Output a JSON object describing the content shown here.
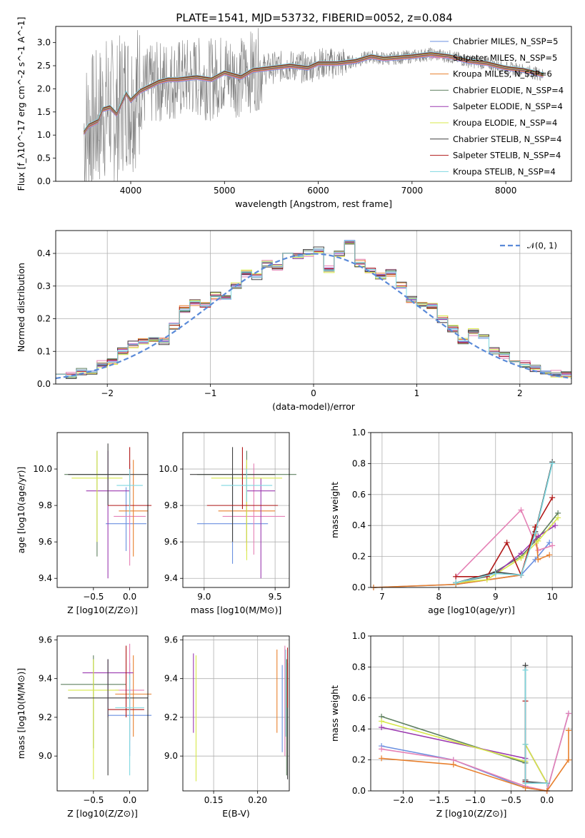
{
  "figure_title": "PLATE=1541, MJD=53732, FIBERID=0052, z=0.084",
  "colors": {
    "chabrier_miles": "#6a8fe0",
    "salpeter_miles": "#e580b5",
    "kroupa_miles": "#e8802e",
    "chabrier_elodie": "#5f8060",
    "salpeter_elodie": "#9b3ab0",
    "kroupa_elodie": "#d7e84a",
    "chabrier_stelib": "#404040",
    "salpeter_stelib": "#b01818",
    "kroupa_stelib": "#7fd8e0",
    "data": "#808080",
    "normal": "#5a8ad8"
  },
  "chart_data": [
    {
      "type": "line",
      "title": "PLATE=1541, MJD=53732, FIBERID=0052, z=0.084",
      "xlabel": "wavelength [Angstrom, rest frame]",
      "ylabel": "Flux [f_λ10^-17 erg cm^-2 s^-1 A^-1]",
      "xlim": [
        3200,
        8700
      ],
      "ylim": [
        0,
        3.35
      ],
      "xticks": [
        "4000",
        "5000",
        "6000",
        "7000",
        "8000"
      ],
      "yticks": [
        "0.0",
        "0.5",
        "1.0",
        "1.5",
        "2.0",
        "2.5",
        "3.0"
      ],
      "legend_position": "right",
      "legend": [
        "Chabrier MILES, N_SSP=5",
        "Salpeter MILES, N_SSP=5",
        "Kroupa MILES, N_SSP=6",
        "Chabrier ELODIE, N_SSP=4",
        "Salpeter ELODIE, N_SSP=4",
        "Kroupa ELODIE, N_SSP=4",
        "Chabrier STELIB, N_SSP=4",
        "Salpeter STELIB, N_SSP=4",
        "Kroupa STELIB, N_SSP=4"
      ],
      "model_x": [
        3500,
        3550,
        3650,
        3700,
        3780,
        3850,
        3950,
        4000,
        4100,
        4200,
        4300,
        4400,
        4500,
        4700,
        4860,
        5000,
        5175,
        5300,
        5500,
        5700,
        5890,
        6000,
        6200,
        6400,
        6563,
        6700,
        7000,
        7200,
        7400,
        7600,
        7800,
        8000,
        8200,
        8400
      ],
      "model_y": [
        1.05,
        1.2,
        1.3,
        1.55,
        1.6,
        1.45,
        1.9,
        1.75,
        1.95,
        2.05,
        2.15,
        2.2,
        2.2,
        2.25,
        2.2,
        2.35,
        2.25,
        2.4,
        2.45,
        2.5,
        2.45,
        2.55,
        2.55,
        2.6,
        2.7,
        2.65,
        2.7,
        2.75,
        2.7,
        2.6,
        2.55,
        2.45,
        2.4,
        2.3
      ]
    },
    {
      "type": "bar",
      "xlabel": "(data-model)/error",
      "ylabel": "Normed distribution",
      "xlim": [
        -2.5,
        2.5
      ],
      "ylim": [
        0,
        0.47
      ],
      "xticks": [
        "−2",
        "−1",
        "0",
        "1",
        "2"
      ],
      "yticks": [
        "0.0",
        "0.1",
        "0.2",
        "0.3",
        "0.4"
      ],
      "legend": [
        "𝒩(0, 1)"
      ],
      "legend_position": "top-right",
      "bin_width": 0.1,
      "x": [
        -2.45,
        -2.35,
        -2.25,
        -2.15,
        -2.05,
        -1.95,
        -1.85,
        -1.75,
        -1.65,
        -1.55,
        -1.45,
        -1.35,
        -1.25,
        -1.15,
        -1.05,
        -0.95,
        -0.85,
        -0.75,
        -0.65,
        -0.55,
        -0.45,
        -0.35,
        -0.25,
        -0.15,
        -0.05,
        0.05,
        0.15,
        0.25,
        0.35,
        0.45,
        0.55,
        0.65,
        0.75,
        0.85,
        0.95,
        1.05,
        1.15,
        1.25,
        1.35,
        1.45,
        1.55,
        1.65,
        1.75,
        1.85,
        1.95,
        2.05,
        2.15,
        2.25,
        2.35,
        2.45
      ],
      "y": [
        0.03,
        0.025,
        0.04,
        0.04,
        0.06,
        0.07,
        0.1,
        0.12,
        0.13,
        0.14,
        0.13,
        0.18,
        0.23,
        0.25,
        0.24,
        0.27,
        0.26,
        0.3,
        0.34,
        0.33,
        0.37,
        0.36,
        0.4,
        0.39,
        0.4,
        0.41,
        0.35,
        0.4,
        0.44,
        0.37,
        0.35,
        0.33,
        0.34,
        0.3,
        0.26,
        0.24,
        0.24,
        0.2,
        0.17,
        0.13,
        0.16,
        0.14,
        0.1,
        0.09,
        0.07,
        0.06,
        0.05,
        0.04,
        0.03,
        0.03
      ]
    },
    {
      "type": "scatter",
      "xlabel": "Z [log10(Z/Z⊙)]",
      "ylabel": "age  [log10(age/yr)]",
      "xlim": [
        -1.0,
        0.25
      ],
      "ylim": [
        9.35,
        10.2
      ],
      "xticks": [
        "−0.5",
        "0.0"
      ],
      "yticks": [
        "9.4",
        "9.6",
        "9.8",
        "10.0"
      ],
      "points": [
        {
          "x": -0.05,
          "y": 9.7,
          "xerr": 0.28,
          "ymin": 9.55,
          "ymax": 9.9
        },
        {
          "x": 0.0,
          "y": 9.74,
          "xerr": 0.22,
          "ymin": 9.47,
          "ymax": 10.03
        },
        {
          "x": 0.05,
          "y": 9.77,
          "xerr": 0.2,
          "ymin": 9.52,
          "ymax": 10.05
        },
        {
          "x": -0.45,
          "y": 9.97,
          "xerr": 0.45,
          "ymin": 9.52,
          "ymax": 10.1
        },
        {
          "x": -0.3,
          "y": 9.88,
          "xerr": 0.3,
          "ymin": 9.4,
          "ymax": 10.1
        },
        {
          "x": -0.45,
          "y": 9.95,
          "xerr": 0.35,
          "ymin": 9.6,
          "ymax": 10.1
        },
        {
          "x": -0.3,
          "y": 9.97,
          "xerr": 0.55,
          "ymin": 9.8,
          "ymax": 10.14
        },
        {
          "x": 0.0,
          "y": 9.8,
          "xerr": 0.3,
          "ymin": 9.8,
          "ymax": 10.12
        },
        {
          "x": 0.0,
          "y": 9.91,
          "xerr": 0.18,
          "ymin": 9.75,
          "ymax": 10.0
        }
      ]
    },
    {
      "type": "scatter",
      "xlabel": "mass [log10(M/M⊙)]",
      "ylabel": "",
      "xlim": [
        8.85,
        9.6
      ],
      "ylim": [
        9.35,
        10.2
      ],
      "xticks": [
        "9.0",
        "9.5"
      ],
      "yticks": [
        "9.4",
        "9.6",
        "9.8",
        "10.0"
      ],
      "points": [
        {
          "x": 9.2,
          "y": 9.7,
          "xerr": 0.25,
          "ymin": 9.48,
          "ymax": 9.96
        },
        {
          "x": 9.35,
          "y": 9.74,
          "xerr": 0.22,
          "ymin": 9.53,
          "ymax": 10.03
        },
        {
          "x": 9.3,
          "y": 9.77,
          "xerr": 0.2,
          "ymin": 9.55,
          "ymax": 10.02
        },
        {
          "x": 9.3,
          "y": 9.97,
          "xerr": 0.35,
          "ymin": 9.6,
          "ymax": 10.1
        },
        {
          "x": 9.4,
          "y": 9.88,
          "xerr": 0.1,
          "ymin": 9.4,
          "ymax": 9.95
        },
        {
          "x": 9.3,
          "y": 9.95,
          "xerr": 0.25,
          "ymin": 9.5,
          "ymax": 10.05
        },
        {
          "x": 9.2,
          "y": 9.97,
          "xerr": 0.3,
          "ymin": 9.6,
          "ymax": 10.12
        },
        {
          "x": 9.27,
          "y": 9.8,
          "xerr": 0.25,
          "ymin": 9.78,
          "ymax": 10.12
        },
        {
          "x": 9.3,
          "y": 9.91,
          "xerr": 0.18,
          "ymin": 9.82,
          "ymax": 10.0
        }
      ]
    },
    {
      "type": "line",
      "xlabel": "age  [log10(age/yr)]",
      "ylabel": "mass weight",
      "xlim": [
        6.8,
        10.35
      ],
      "ylim": [
        0,
        1.0
      ],
      "xticks": [
        "7",
        "8",
        "9",
        "10"
      ],
      "yticks": [
        "0.0",
        "0.2",
        "0.4",
        "0.6",
        "0.8",
        "1.0"
      ],
      "series": [
        {
          "x": [
            6.85,
            8.3,
            9.45,
            9.7,
            9.95
          ],
          "y": [
            0.0,
            0.02,
            0.08,
            0.18,
            0.29
          ]
        },
        {
          "x": [
            8.3,
            9.45,
            9.75,
            10.0
          ],
          "y": [
            0.07,
            0.5,
            0.24,
            0.27
          ]
        },
        {
          "x": [
            6.85,
            8.3,
            9.45,
            9.7,
            9.75,
            9.95
          ],
          "y": [
            0.0,
            0.02,
            0.08,
            0.39,
            0.18,
            0.21
          ]
        },
        {
          "x": [
            8.3,
            8.85,
            9.45,
            9.75,
            10.1
          ],
          "y": [
            0.03,
            0.07,
            0.2,
            0.32,
            0.48
          ]
        },
        {
          "x": [
            8.3,
            9.0,
            9.45,
            9.75,
            10.05
          ],
          "y": [
            0.03,
            0.09,
            0.22,
            0.33,
            0.4
          ]
        },
        {
          "x": [
            8.3,
            8.85,
            9.45,
            9.75,
            10.1
          ],
          "y": [
            0.03,
            0.05,
            0.19,
            0.3,
            0.45
          ]
        },
        {
          "x": [
            8.3,
            9.0,
            9.45,
            9.7,
            10.0
          ],
          "y": [
            0.03,
            0.1,
            0.08,
            0.36,
            0.81
          ]
        },
        {
          "x": [
            8.3,
            8.85,
            9.2,
            9.45,
            9.7,
            10.0
          ],
          "y": [
            0.07,
            0.07,
            0.29,
            0.08,
            0.39,
            0.58
          ]
        },
        {
          "x": [
            8.3,
            9.0,
            9.45,
            9.7,
            10.0
          ],
          "y": [
            0.03,
            0.09,
            0.08,
            0.35,
            0.8
          ]
        }
      ]
    },
    {
      "type": "scatter",
      "xlabel": "Z [log10(Z/Z⊙)]",
      "ylabel": "mass [log10(M/M⊙)]",
      "xlim": [
        -1.0,
        0.25
      ],
      "ylim": [
        8.82,
        9.62
      ],
      "xticks": [
        "−0.5",
        "0.0"
      ],
      "yticks": [
        "9.0",
        "9.2",
        "9.4",
        "9.6"
      ],
      "points": [
        {
          "x": 0.0,
          "y": 9.21,
          "xerr": 0.3,
          "ymin": 9.0,
          "ymax": 9.48
        },
        {
          "x": 0.0,
          "y": 9.34,
          "xerr": 0.2,
          "ymin": 9.08,
          "ymax": 9.58
        },
        {
          "x": 0.05,
          "y": 9.32,
          "xerr": 0.25,
          "ymin": 9.1,
          "ymax": 9.52
        },
        {
          "x": -0.5,
          "y": 9.37,
          "xerr": 0.45,
          "ymin": 9.04,
          "ymax": 9.52
        },
        {
          "x": -0.3,
          "y": 9.43,
          "xerr": 0.35,
          "ymin": 9.2,
          "ymax": 9.5
        },
        {
          "x": -0.5,
          "y": 9.34,
          "xerr": 0.35,
          "ymin": 8.88,
          "ymax": 9.5
        },
        {
          "x": -0.3,
          "y": 9.3,
          "xerr": 0.55,
          "ymin": 8.9,
          "ymax": 9.5
        },
        {
          "x": -0.05,
          "y": 9.24,
          "xerr": 0.25,
          "ymin": 9.2,
          "ymax": 9.57
        },
        {
          "x": 0.0,
          "y": 9.25,
          "xerr": 0.2,
          "ymin": 8.9,
          "ymax": 9.42
        }
      ]
    },
    {
      "type": "scatter",
      "xlabel": "E(B-V)",
      "ylabel": "",
      "xlim": [
        0.115,
        0.236
      ],
      "ylim": [
        8.82,
        9.62
      ],
      "xticks": [
        "0.15",
        "0.20"
      ],
      "yticks": [
        "9.0",
        "9.2",
        "9.4",
        "9.6"
      ],
      "points": [
        {
          "x": 0.228,
          "y": 9.25,
          "ymin": 9.02,
          "ymax": 9.47
        },
        {
          "x": 0.231,
          "y": 9.3,
          "ymin": 9.0,
          "ymax": 9.57
        },
        {
          "x": 0.222,
          "y": 9.3,
          "ymin": 9.12,
          "ymax": 9.55
        },
        {
          "x": 0.233,
          "y": 9.3,
          "ymin": 8.9,
          "ymax": 9.5
        },
        {
          "x": 0.127,
          "y": 9.3,
          "ymin": 9.12,
          "ymax": 9.53
        },
        {
          "x": 0.13,
          "y": 9.3,
          "ymin": 8.87,
          "ymax": 9.52
        },
        {
          "x": 0.234,
          "y": 9.3,
          "ymin": 8.88,
          "ymax": 9.48
        },
        {
          "x": 0.234,
          "y": 9.3,
          "ymin": 9.25,
          "ymax": 9.56
        },
        {
          "x": 0.232,
          "y": 9.3,
          "ymin": 9.1,
          "ymax": 9.55
        }
      ]
    },
    {
      "type": "line",
      "xlabel": "Z [log10(Z/Z⊙)]",
      "ylabel": "mass weight",
      "xlim": [
        -2.45,
        0.35
      ],
      "ylim": [
        0,
        1.0
      ],
      "xticks": [
        "−2.0",
        "−1.5",
        "−1.0",
        "−0.5",
        "0.0"
      ],
      "yticks": [
        "0.0",
        "0.2",
        "0.4",
        "0.6",
        "0.8",
        "1.0"
      ],
      "series": [
        {
          "x": [
            -2.3,
            -1.3,
            -0.3,
            0.0,
            0.3
          ],
          "y": [
            0.29,
            0.2,
            0.02,
            0.0,
            0.5
          ]
        },
        {
          "x": [
            -2.3,
            -1.3,
            -0.3,
            0.0,
            0.3
          ],
          "y": [
            0.27,
            0.2,
            0.03,
            0.0,
            0.5
          ]
        },
        {
          "x": [
            -2.3,
            -1.3,
            -0.3,
            0.0,
            0.3,
            0.3
          ],
          "y": [
            0.21,
            0.17,
            0.02,
            0.0,
            0.2,
            0.39
          ]
        },
        {
          "x": [
            -2.3,
            -0.3,
            -0.3,
            0.0
          ],
          "y": [
            0.48,
            0.18,
            0.3,
            0.05
          ]
        },
        {
          "x": [
            -2.3,
            -0.3,
            -0.3,
            0.0
          ],
          "y": [
            0.41,
            0.21,
            0.3,
            0.05
          ]
        },
        {
          "x": [
            -2.3,
            -0.3,
            -0.3,
            0.0
          ],
          "y": [
            0.45,
            0.19,
            0.3,
            0.05
          ]
        },
        {
          "x": [
            -0.3,
            -0.3,
            -0.3,
            0.0
          ],
          "y": [
            0.81,
            0.07,
            0.06,
            0.05
          ]
        },
        {
          "x": [
            -0.3,
            -0.3,
            -0.3,
            0.0
          ],
          "y": [
            0.58,
            0.06,
            0.05,
            0.05
          ]
        },
        {
          "x": [
            -0.3,
            -0.3,
            -0.3,
            0.0
          ],
          "y": [
            0.78,
            0.3,
            0.05,
            0.05
          ]
        }
      ]
    }
  ]
}
